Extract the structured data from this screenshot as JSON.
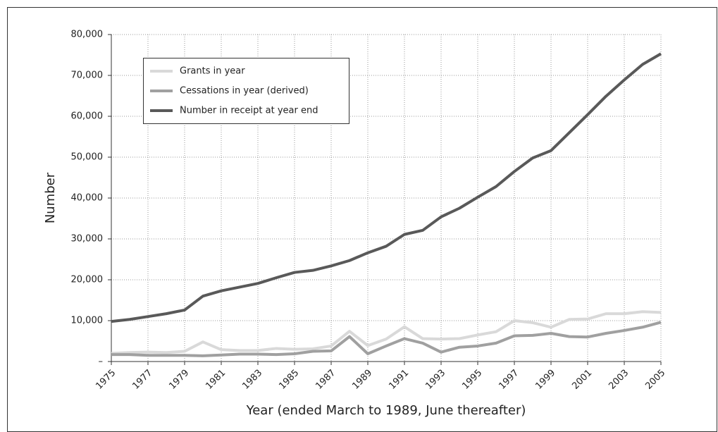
{
  "chart_data": {
    "type": "line",
    "ylabel": "Number",
    "xlabel": "Year (ended March to 1989, June thereafter)",
    "x": [
      1975,
      1976,
      1977,
      1978,
      1979,
      1980,
      1981,
      1982,
      1983,
      1984,
      1985,
      1986,
      1987,
      1988,
      1989,
      1990,
      1991,
      1992,
      1993,
      1994,
      1995,
      1996,
      1997,
      1998,
      1999,
      2000,
      2001,
      2002,
      2003,
      2004,
      2005
    ],
    "series": [
      {
        "name": "Grants in year",
        "color": "#d9d9d9",
        "values": [
          2000,
          2200,
          2300,
          2200,
          2500,
          4800,
          2900,
          2700,
          2700,
          3200,
          3000,
          3100,
          3800,
          7400,
          3900,
          5500,
          8500,
          5600,
          5500,
          5600,
          6500,
          7300,
          10000,
          9500,
          8400,
          10300,
          10400,
          11700,
          11700,
          12200,
          12000
        ]
      },
      {
        "name": "Cessations in year (derived)",
        "color": "#a0a0a0",
        "values": [
          1700,
          1700,
          1500,
          1500,
          1500,
          1400,
          1600,
          1800,
          1800,
          1700,
          1900,
          2500,
          2600,
          6100,
          1900,
          3800,
          5600,
          4500,
          2300,
          3500,
          3800,
          4500,
          6300,
          6400,
          6900,
          6100,
          6000,
          6900,
          7600,
          8400,
          9600
        ]
      },
      {
        "name": "Number in receipt at year end",
        "color": "#595959",
        "values": [
          9800,
          10300,
          11000,
          11700,
          12600,
          16000,
          17300,
          18200,
          19100,
          20500,
          21800,
          22300,
          23400,
          24700,
          26600,
          28200,
          31100,
          32100,
          35400,
          37500,
          40200,
          42800,
          46500,
          49800,
          51600,
          56000,
          60400,
          64900,
          68900,
          72700,
          75300
        ]
      }
    ],
    "xlim": [
      1975,
      2005
    ],
    "xticks": [
      1975,
      1977,
      1979,
      1981,
      1983,
      1985,
      1987,
      1989,
      1991,
      1993,
      1995,
      1997,
      1999,
      2001,
      2003,
      2005
    ],
    "ylim": [
      0,
      80000
    ],
    "yticks": [
      {
        "value": 0,
        "label": "–"
      },
      {
        "value": 10000,
        "label": "10,000"
      },
      {
        "value": 20000,
        "label": "20,000"
      },
      {
        "value": 30000,
        "label": "30,000"
      },
      {
        "value": 40000,
        "label": "40,000"
      },
      {
        "value": 50000,
        "label": "50,000"
      },
      {
        "value": 60000,
        "label": "60,000"
      },
      {
        "value": 70000,
        "label": "70,000"
      },
      {
        "value": 80000,
        "label": "80,000"
      }
    ],
    "grid": true,
    "legend": "upper left"
  }
}
